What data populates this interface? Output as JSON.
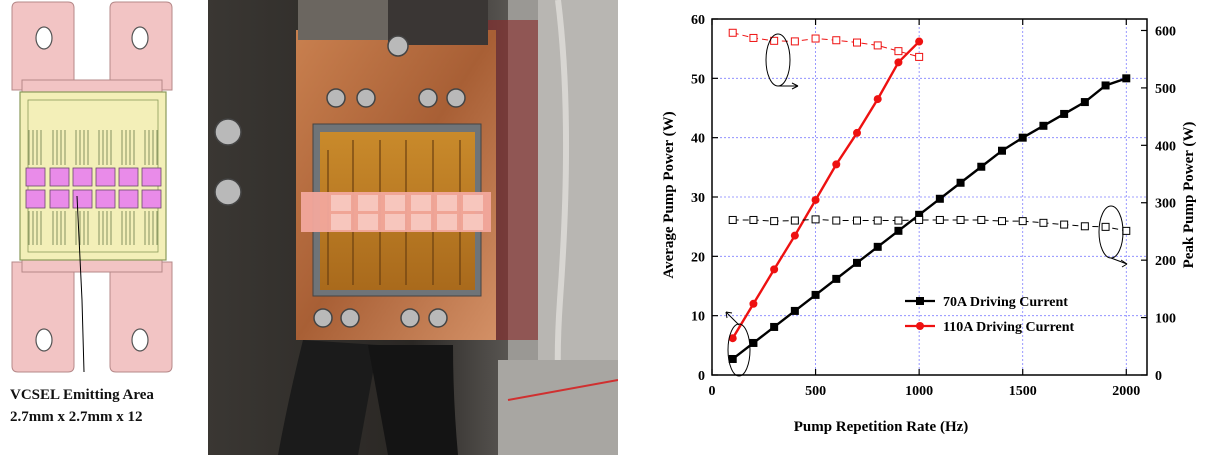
{
  "schematic": {
    "caption_line1": "VCSEL Emitting Area",
    "caption_line2": "2.7mm x 2.7mm x 12",
    "colors": {
      "tab": "#f2c4c4",
      "board": "#f3efb8",
      "emitter": "#e98be9"
    }
  },
  "photo": {
    "description_icon": "vcsel-array-photo"
  },
  "chart_data": {
    "type": "line",
    "xlabel": "Pump Repetition Rate (Hz)",
    "ylabel": "Average Pump Power (W)",
    "y2label": "Peak Pump Power (W)",
    "xlim": [
      0,
      2100
    ],
    "ylim": [
      0,
      60
    ],
    "y2lim": [
      0,
      620
    ],
    "xticks": [
      0,
      500,
      1000,
      1500,
      2000
    ],
    "yticks": [
      0,
      10,
      20,
      30,
      40,
      50,
      60
    ],
    "y2ticks": [
      0,
      100,
      200,
      300,
      400,
      500,
      600
    ],
    "grid": true,
    "legend_position": "bottom-right",
    "series": [
      {
        "name": "70A Driving Current",
        "axis": "left",
        "color": "#000000",
        "marker": "square",
        "x": [
          100,
          200,
          300,
          400,
          500,
          600,
          700,
          800,
          900,
          1000,
          1100,
          1200,
          1300,
          1400,
          1500,
          1600,
          1700,
          1800,
          1900,
          2000
        ],
        "values": [
          2.7,
          5.4,
          8.1,
          10.8,
          13.5,
          16.2,
          18.9,
          21.6,
          24.3,
          27.0,
          29.7,
          32.4,
          35.1,
          37.8,
          40.0,
          42.0,
          44.0,
          46.0,
          48.8,
          50.0
        ]
      },
      {
        "name": "110A Driving Current",
        "axis": "left",
        "color": "#ee1111",
        "marker": "circle",
        "x": [
          100,
          200,
          300,
          400,
          500,
          600,
          700,
          800,
          900,
          1000
        ],
        "values": [
          6.2,
          12.0,
          17.8,
          23.5,
          29.5,
          35.5,
          40.8,
          46.5,
          52.7,
          56.2
        ]
      },
      {
        "axis": "right",
        "color": "#000000",
        "marker": "open-square",
        "dashed": true,
        "x": [
          100,
          200,
          300,
          400,
          500,
          600,
          700,
          800,
          900,
          1000,
          1100,
          1200,
          1300,
          1400,
          1500,
          1600,
          1700,
          1800,
          1900,
          2000
        ],
        "values": [
          270,
          270,
          268,
          269,
          271,
          269,
          269,
          269,
          269,
          270,
          270,
          270,
          270,
          268,
          268,
          265,
          262,
          259,
          258,
          251
        ]
      },
      {
        "axis": "right",
        "color": "#ee1111",
        "marker": "open-square",
        "dashed": true,
        "x": [
          100,
          200,
          300,
          400,
          500,
          600,
          700,
          800,
          900,
          1000
        ],
        "values": [
          596,
          587,
          582,
          581,
          586,
          583,
          579,
          574,
          564,
          554
        ]
      }
    ]
  }
}
